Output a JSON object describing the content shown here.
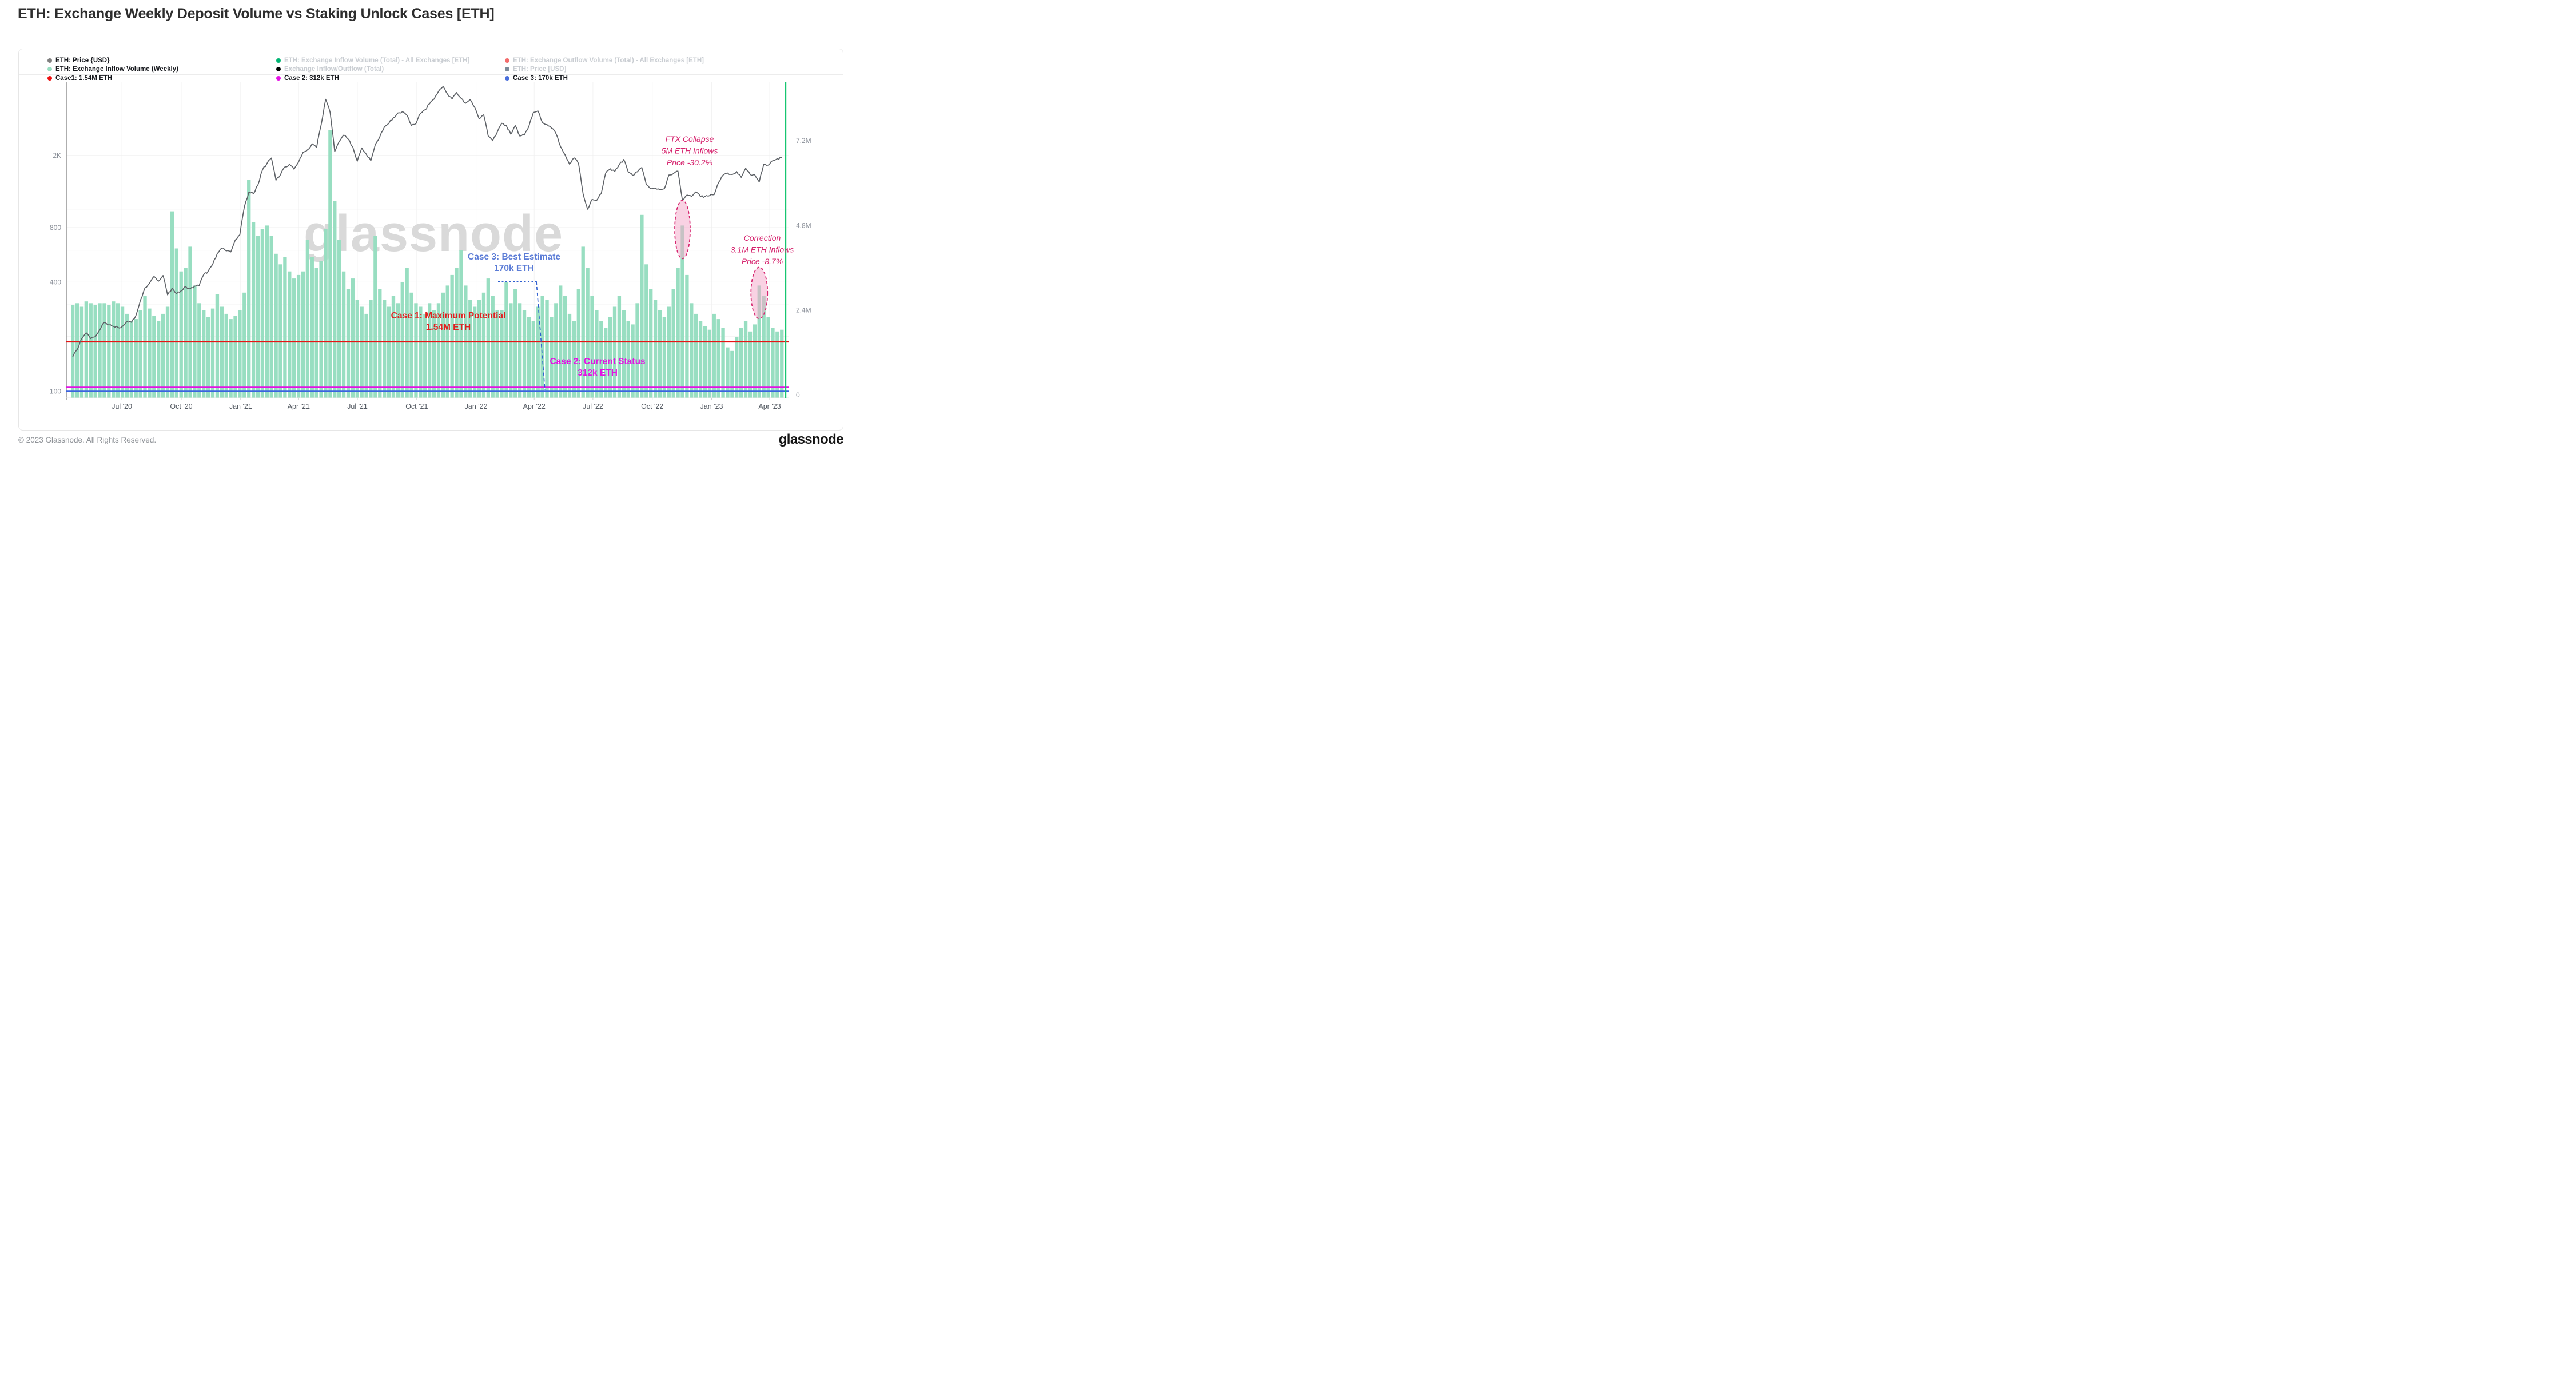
{
  "page": {
    "title": "ETH: Exchange Weekly Deposit Volume vs Staking Unlock Cases [ETH]",
    "footer_copyright": "© 2023 Glassnode. All Rights Reserved.",
    "footer_logo": "glassnode",
    "watermark": "glassnode"
  },
  "legend": {
    "columns": [
      [
        {
          "label": "ETH: Price {USD}",
          "color": "#7f7f7f",
          "enabled": true
        },
        {
          "label": "ETH: Exchange Inflow Volume (Weekly)",
          "color": "#98dec1",
          "enabled": true
        },
        {
          "label": "Case1: 1.54M ETH",
          "color": "#ee1111",
          "enabled": true
        }
      ],
      [
        {
          "label": "ETH: Exchange Inflow Volume (Total) - All Exchanges [ETH]",
          "color": "#00b573",
          "enabled": false
        },
        {
          "label": "Exchange Inflow/Outflow (Total)",
          "color": "#000000",
          "enabled": false
        },
        {
          "label": "Case 2: 312k ETH",
          "color": "#e412e4",
          "enabled": true
        }
      ],
      [
        {
          "label": "ETH: Exchange Outflow Volume (Total) - All Exchanges [ETH]",
          "color": "#f36c6c",
          "enabled": false
        },
        {
          "label": "ETH: Price [USD]",
          "color": "#7b8b99",
          "enabled": false
        },
        {
          "label": "Case 3: 170k ETH",
          "color": "#4a6fdc",
          "enabled": true
        }
      ]
    ]
  },
  "chart_data": {
    "type": "mixed",
    "title": "ETH: Exchange Weekly Deposit Volume vs Staking Unlock Cases [ETH]",
    "x_axis": {
      "start_date": "2020-04-13",
      "interval": "weekly",
      "tick_dates": [
        "2020-07-01",
        "2020-10-01",
        "2021-01-01",
        "2021-04-01",
        "2021-07-01",
        "2021-10-01",
        "2022-01-01",
        "2022-04-01",
        "2022-07-01",
        "2022-10-01",
        "2023-01-01",
        "2023-04-01"
      ],
      "tick_labels": [
        "Jul '20",
        "Oct '20",
        "Jan '21",
        "Apr '21",
        "Jul '21",
        "Oct '21",
        "Jan '22",
        "Apr '22",
        "Jul '22",
        "Oct '22",
        "Jan '23",
        "Apr '23"
      ]
    },
    "left_axis": {
      "series": "ETH: Price {USD}",
      "scale": "log",
      "ticks": [
        {
          "label": "2K",
          "value": 2000
        },
        {
          "label": "800",
          "value": 800
        },
        {
          "label": "400",
          "value": 400
        },
        {
          "label": "100",
          "value": 100
        }
      ]
    },
    "right_axis": {
      "series": "ETH: Exchange Inflow Volume (Weekly)",
      "scale": "linear",
      "unit": "ETH",
      "ticks": [
        {
          "label": "7.2M",
          "value": 7200000
        },
        {
          "label": "4.8M",
          "value": 4800000
        },
        {
          "label": "2.4M",
          "value": 2400000
        },
        {
          "label": "0",
          "value": 0
        }
      ]
    },
    "grid": {
      "h_lines_price_values": [
        2000,
        1000,
        800,
        600,
        400,
        300,
        200
      ],
      "v_lines": "quarter_ticks"
    },
    "series": [
      {
        "name": "ETH: Price {USD}",
        "type": "line",
        "axis": "left",
        "color": "#5d6166",
        "unit": "USD",
        "values": [
          155,
          170,
          195,
          210,
          195,
          200,
          218,
          240,
          232,
          228,
          225,
          228,
          242,
          240,
          262,
          318,
          372,
          395,
          430,
          405,
          435,
          340,
          370,
          345,
          358,
          378,
          368,
          380,
          383,
          440,
          460,
          502,
          575,
          616,
          595,
          587,
          684,
          730,
          1040,
          1255,
          1230,
          1375,
          1660,
          1805,
          1935,
          1460,
          1565,
          1730,
          1790,
          1680,
          1840,
          2080,
          2150,
          2320,
          2210,
          2950,
          4080,
          3450,
          2100,
          2385,
          2590,
          2460,
          2230,
          1860,
          2200,
          2030,
          1870,
          2300,
          2540,
          2870,
          3010,
          3230,
          3430,
          3490,
          3330,
          2930,
          3000,
          3415,
          3570,
          3850,
          4090,
          4520,
          4800,
          4350,
          4100,
          4445,
          4130,
          3880,
          4070,
          3690,
          3180,
          3350,
          2560,
          2410,
          2690,
          3010,
          2930,
          2620,
          2920,
          2560,
          2590,
          2890,
          3450,
          3520,
          3040,
          2960,
          2830,
          2640,
          2240,
          2020,
          1790,
          1940,
          1800,
          1230,
          1010,
          1145,
          1130,
          1230,
          1600,
          1690,
          1630,
          1780,
          1900,
          1620,
          1550,
          1625,
          1715,
          1380,
          1310,
          1320,
          1295,
          1310,
          1560,
          1590,
          1640,
          1130,
          1210,
          1190,
          1260,
          1185,
          1190,
          1200,
          1215,
          1420,
          1560,
          1600,
          1570,
          1630,
          1515,
          1700,
          1570,
          1565,
          1430,
          1790,
          1770,
          1870,
          1920,
          1950
        ]
      },
      {
        "name": "ETH: Exchange Inflow Volume (Weekly)",
        "type": "bar",
        "axis": "right",
        "color": "#98dec1",
        "unit": "millions_ETH",
        "values": [
          2.55,
          2.6,
          2.5,
          2.65,
          2.6,
          2.55,
          2.6,
          2.6,
          2.55,
          2.65,
          2.6,
          2.5,
          2.3,
          2.1,
          2.15,
          2.4,
          2.8,
          2.45,
          2.25,
          2.1,
          2.3,
          2.5,
          5.2,
          4.15,
          3.5,
          3.6,
          4.2,
          3.1,
          2.6,
          2.4,
          2.2,
          2.45,
          2.85,
          2.5,
          2.3,
          2.15,
          2.25,
          2.4,
          2.9,
          6.1,
          4.9,
          4.5,
          4.7,
          4.8,
          4.5,
          4.0,
          3.7,
          3.9,
          3.5,
          3.3,
          3.4,
          3.5,
          4.4,
          3.9,
          3.6,
          3.8,
          4.7,
          7.5,
          5.5,
          4.4,
          3.5,
          3.0,
          3.3,
          2.7,
          2.5,
          2.3,
          2.7,
          4.5,
          3.0,
          2.7,
          2.5,
          2.8,
          2.6,
          3.2,
          3.6,
          2.9,
          2.6,
          2.5,
          2.3,
          2.6,
          2.4,
          2.6,
          2.9,
          3.1,
          3.4,
          3.6,
          4.1,
          3.1,
          2.7,
          2.5,
          2.7,
          2.9,
          3.3,
          2.8,
          2.4,
          2.4,
          3.2,
          2.6,
          3.0,
          2.6,
          2.4,
          2.2,
          2.1,
          2.5,
          2.8,
          2.7,
          2.2,
          2.6,
          3.1,
          2.8,
          2.3,
          2.1,
          3.0,
          4.2,
          3.6,
          2.8,
          2.4,
          2.1,
          1.9,
          2.2,
          2.5,
          2.8,
          2.4,
          2.1,
          2.0,
          2.6,
          5.1,
          3.7,
          3.0,
          2.7,
          2.4,
          2.2,
          2.5,
          3.0,
          3.6,
          4.8,
          3.4,
          2.6,
          2.3,
          2.1,
          1.95,
          1.85,
          2.3,
          2.15,
          1.9,
          1.35,
          1.25,
          1.65,
          1.9,
          2.1,
          1.8,
          2.0,
          3.1,
          2.8,
          2.2,
          1.9,
          1.8,
          1.85
        ]
      }
    ],
    "reference_lines": [
      {
        "name": "case1",
        "label_lines": [
          "Case 1: Maximum Potential",
          "1.54M ETH"
        ],
        "value_eth": 1540000,
        "color": "#e61515",
        "text_color": "#e02020"
      },
      {
        "name": "case2",
        "label_lines": [
          "Case 2: Current Status",
          "312k ETH"
        ],
        "value_eth": 312000,
        "color": "#e412e4",
        "text_color": "#e412e4"
      },
      {
        "name": "case3",
        "label_lines": [
          "Case 3: Best Estimate",
          "170k ETH"
        ],
        "value_eth": 170000,
        "color": "#3b63e0",
        "text_color": "#5b7cd6"
      }
    ],
    "event_annotations": [
      {
        "name": "ftx",
        "lines": [
          "FTX Collapse",
          "5M ETH Inflows",
          "Price -30.2%"
        ],
        "week_index": 135,
        "color": "#d6246e"
      },
      {
        "name": "correction",
        "lines": [
          "Correction",
          "3.1M ETH Inflows",
          "Price -8.7%"
        ],
        "week_index": 152,
        "color": "#d6246e"
      }
    ],
    "current_marker_color": "#17c671"
  }
}
